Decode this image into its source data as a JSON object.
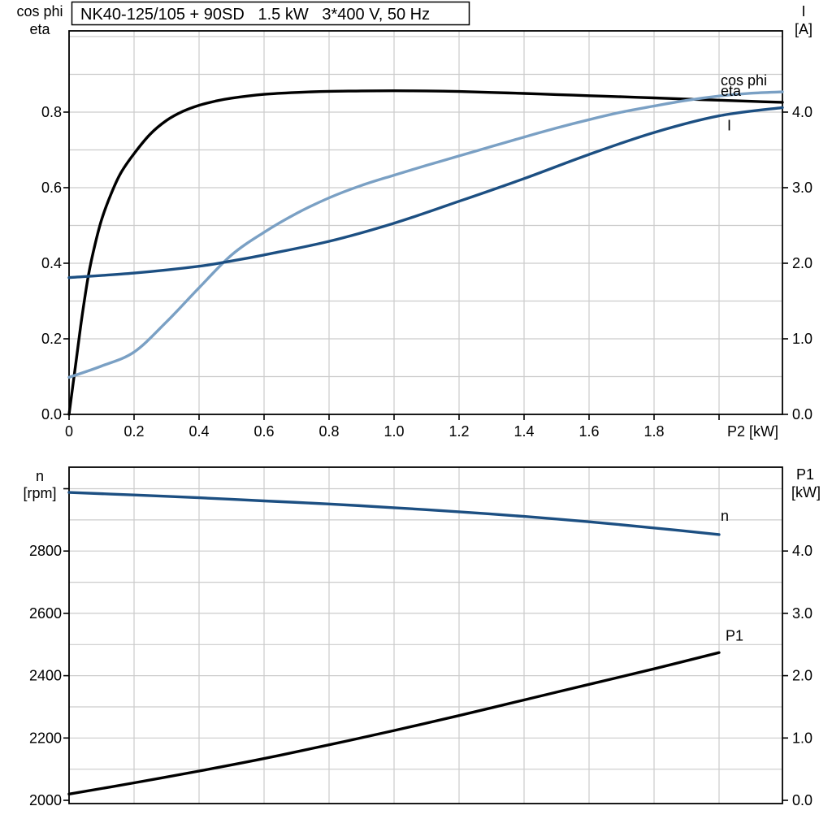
{
  "title_box": {
    "text": "NK40-125/105 + 90SD   1.5 kW   3*400 V, 50 Hz"
  },
  "colors": {
    "black": "#000000",
    "dark_blue": "#1c4f82",
    "light_blue": "#7aa0c4",
    "grid": "#cccccc",
    "frame": "#000000"
  },
  "chart_data": [
    {
      "type": "line",
      "title": "NK40-125/105 + 90SD   1.5 kW   3*400 V, 50 Hz",
      "x_axis": {
        "title": "P2 [kW]",
        "range": [
          0,
          2.195
        ],
        "ticks": [
          {
            "v": 0,
            "label": "0"
          },
          {
            "v": 0.2,
            "label": "0.2"
          },
          {
            "v": 0.4,
            "label": "0.4"
          },
          {
            "v": 0.6,
            "label": "0.6"
          },
          {
            "v": 0.8,
            "label": "0.8"
          },
          {
            "v": 1.0,
            "label": "1.0"
          },
          {
            "v": 1.2,
            "label": "1.2"
          },
          {
            "v": 1.4,
            "label": "1.4"
          },
          {
            "v": 1.6,
            "label": "1.6"
          },
          {
            "v": 1.8,
            "label": "1.8"
          },
          {
            "v": 2.0,
            "label": ""
          }
        ]
      },
      "left_axis": {
        "title_lines": [
          "cos phi",
          "eta"
        ],
        "range": [
          0,
          1.015
        ],
        "ticks": [
          {
            "v": 0.0,
            "label": "0.0"
          },
          {
            "v": 0.2,
            "label": "0.2"
          },
          {
            "v": 0.4,
            "label": "0.4"
          },
          {
            "v": 0.6,
            "label": "0.6"
          },
          {
            "v": 0.8,
            "label": "0.8"
          }
        ]
      },
      "right_axis": {
        "title_lines": [
          "I",
          "[A]"
        ],
        "range": [
          0,
          5.075
        ],
        "ticks": [
          {
            "v": 0.0,
            "label": "0.0"
          },
          {
            "v": 1.0,
            "label": "1.0"
          },
          {
            "v": 2.0,
            "label": "2.0"
          },
          {
            "v": 3.0,
            "label": "3.0"
          },
          {
            "v": 4.0,
            "label": "4.0"
          }
        ]
      },
      "y_grid_values": [
        0.1,
        0.2,
        0.3,
        0.4,
        0.5,
        0.6,
        0.7,
        0.8,
        0.9,
        1.0
      ],
      "x_grid_values": [
        0.2,
        0.4,
        0.6,
        0.8,
        1.0,
        1.2,
        1.4,
        1.6,
        1.8,
        2.0
      ],
      "series": [
        {
          "name": "eta",
          "axis": "left",
          "color": "black",
          "points": [
            [
              0,
              0
            ],
            [
              0.02,
              0.13
            ],
            [
              0.04,
              0.26
            ],
            [
              0.06,
              0.37
            ],
            [
              0.08,
              0.45
            ],
            [
              0.1,
              0.515
            ],
            [
              0.13,
              0.585
            ],
            [
              0.16,
              0.64
            ],
            [
              0.2,
              0.69
            ],
            [
              0.25,
              0.742
            ],
            [
              0.3,
              0.778
            ],
            [
              0.35,
              0.802
            ],
            [
              0.4,
              0.818
            ],
            [
              0.45,
              0.829
            ],
            [
              0.5,
              0.837
            ],
            [
              0.6,
              0.847
            ],
            [
              0.7,
              0.852
            ],
            [
              0.8,
              0.855
            ],
            [
              0.9,
              0.856
            ],
            [
              1.0,
              0.8565
            ],
            [
              1.1,
              0.856
            ],
            [
              1.2,
              0.8545
            ],
            [
              1.3,
              0.852
            ],
            [
              1.4,
              0.8495
            ],
            [
              1.5,
              0.8465
            ],
            [
              1.6,
              0.8435
            ],
            [
              1.7,
              0.8405
            ],
            [
              1.8,
              0.8375
            ],
            [
              1.9,
              0.8345
            ],
            [
              2.0,
              0.8315
            ],
            [
              2.1,
              0.8285
            ],
            [
              2.195,
              0.826
            ]
          ]
        },
        {
          "name": "cos phi",
          "axis": "left",
          "color": "light_blue",
          "points": [
            [
              0,
              0.098
            ],
            [
              0.1,
              0.128
            ],
            [
              0.2,
              0.165
            ],
            [
              0.3,
              0.245
            ],
            [
              0.4,
              0.335
            ],
            [
              0.5,
              0.422
            ],
            [
              0.6,
              0.482
            ],
            [
              0.7,
              0.532
            ],
            [
              0.8,
              0.573
            ],
            [
              0.9,
              0.606
            ],
            [
              1.0,
              0.633
            ],
            [
              1.1,
              0.659
            ],
            [
              1.2,
              0.684
            ],
            [
              1.3,
              0.709
            ],
            [
              1.4,
              0.734
            ],
            [
              1.5,
              0.758
            ],
            [
              1.6,
              0.78
            ],
            [
              1.7,
              0.8
            ],
            [
              1.8,
              0.816
            ],
            [
              1.9,
              0.831
            ],
            [
              2.0,
              0.8425
            ],
            [
              2.1,
              0.85
            ],
            [
              2.195,
              0.8535
            ]
          ]
        },
        {
          "name": "I",
          "axis": "right",
          "color": "dark_blue",
          "points": [
            [
              0,
              1.81
            ],
            [
              0.2,
              1.87
            ],
            [
              0.4,
              1.96
            ],
            [
              0.5,
              2.03
            ],
            [
              0.6,
              2.11
            ],
            [
              0.8,
              2.29
            ],
            [
              1.0,
              2.53
            ],
            [
              1.2,
              2.82
            ],
            [
              1.4,
              3.12
            ],
            [
              1.6,
              3.44
            ],
            [
              1.8,
              3.73
            ],
            [
              2.0,
              3.95
            ],
            [
              2.195,
              4.06
            ]
          ]
        }
      ],
      "curve_labels": [
        {
          "text": "cos phi",
          "color": "light_blue",
          "x": 2.005,
          "y": 0.8835,
          "axis": "left"
        },
        {
          "text": "eta",
          "color": "black",
          "x": 2.005,
          "y": 0.856,
          "axis": "left"
        },
        {
          "text": "I",
          "color": "dark_blue",
          "x": 2.025,
          "y": 3.82,
          "axis": "right"
        }
      ]
    },
    {
      "type": "line",
      "x_axis": {
        "title": "",
        "range": [
          0,
          2.195
        ],
        "ticks": []
      },
      "left_axis": {
        "title_lines": [
          "n",
          "[rpm]"
        ],
        "range": [
          1989.6,
          3069.1
        ],
        "ticks": [
          {
            "v": 2000,
            "label": "2000"
          },
          {
            "v": 2200,
            "label": "2200"
          },
          {
            "v": 2400,
            "label": "2400"
          },
          {
            "v": 2600,
            "label": "2600"
          },
          {
            "v": 2800,
            "label": "2800"
          },
          {
            "v": 3000,
            "label": ""
          }
        ]
      },
      "right_axis": {
        "title_lines": [
          "P1",
          "[kW]"
        ],
        "range": [
          -0.052,
          5.345
        ],
        "ticks": [
          {
            "v": 0.0,
            "label": "0.0"
          },
          {
            "v": 1.0,
            "label": "1.0"
          },
          {
            "v": 2.0,
            "label": "2.0"
          },
          {
            "v": 3.0,
            "label": "3.0"
          },
          {
            "v": 4.0,
            "label": "4.0"
          }
        ]
      },
      "y_grid_values": [
        2100,
        2200,
        2300,
        2400,
        2500,
        2600,
        2700,
        2800,
        2900,
        3000
      ],
      "x_grid_values": [
        0.2,
        0.4,
        0.6,
        0.8,
        1.0,
        1.2,
        1.4,
        1.6,
        1.8,
        2.0
      ],
      "series": [
        {
          "name": "n",
          "axis": "left",
          "color": "dark_blue",
          "points": [
            [
              0,
              2988
            ],
            [
              0.2,
              2980
            ],
            [
              0.4,
              2971
            ],
            [
              0.6,
              2961
            ],
            [
              0.8,
              2951
            ],
            [
              1.0,
              2939
            ],
            [
              1.2,
              2926
            ],
            [
              1.4,
              2911
            ],
            [
              1.6,
              2894
            ],
            [
              1.8,
              2874
            ],
            [
              2.0,
              2853
            ]
          ]
        },
        {
          "name": "P1",
          "axis": "right",
          "color": "black",
          "points": [
            [
              0,
              0.1
            ],
            [
              0.2,
              0.28
            ],
            [
              0.4,
              0.47
            ],
            [
              0.6,
              0.67
            ],
            [
              0.8,
              0.89
            ],
            [
              1.0,
              1.12
            ],
            [
              1.2,
              1.36
            ],
            [
              1.4,
              1.61
            ],
            [
              1.6,
              1.86
            ],
            [
              1.8,
              2.11
            ],
            [
              2.0,
              2.37
            ]
          ]
        }
      ],
      "curve_labels": [
        {
          "text": "n",
          "color": "dark_blue",
          "x": 2.005,
          "y": 2912,
          "axis": "left"
        },
        {
          "text": "P1",
          "color": "black",
          "x": 2.02,
          "y": 2.64,
          "axis": "right"
        }
      ]
    }
  ]
}
